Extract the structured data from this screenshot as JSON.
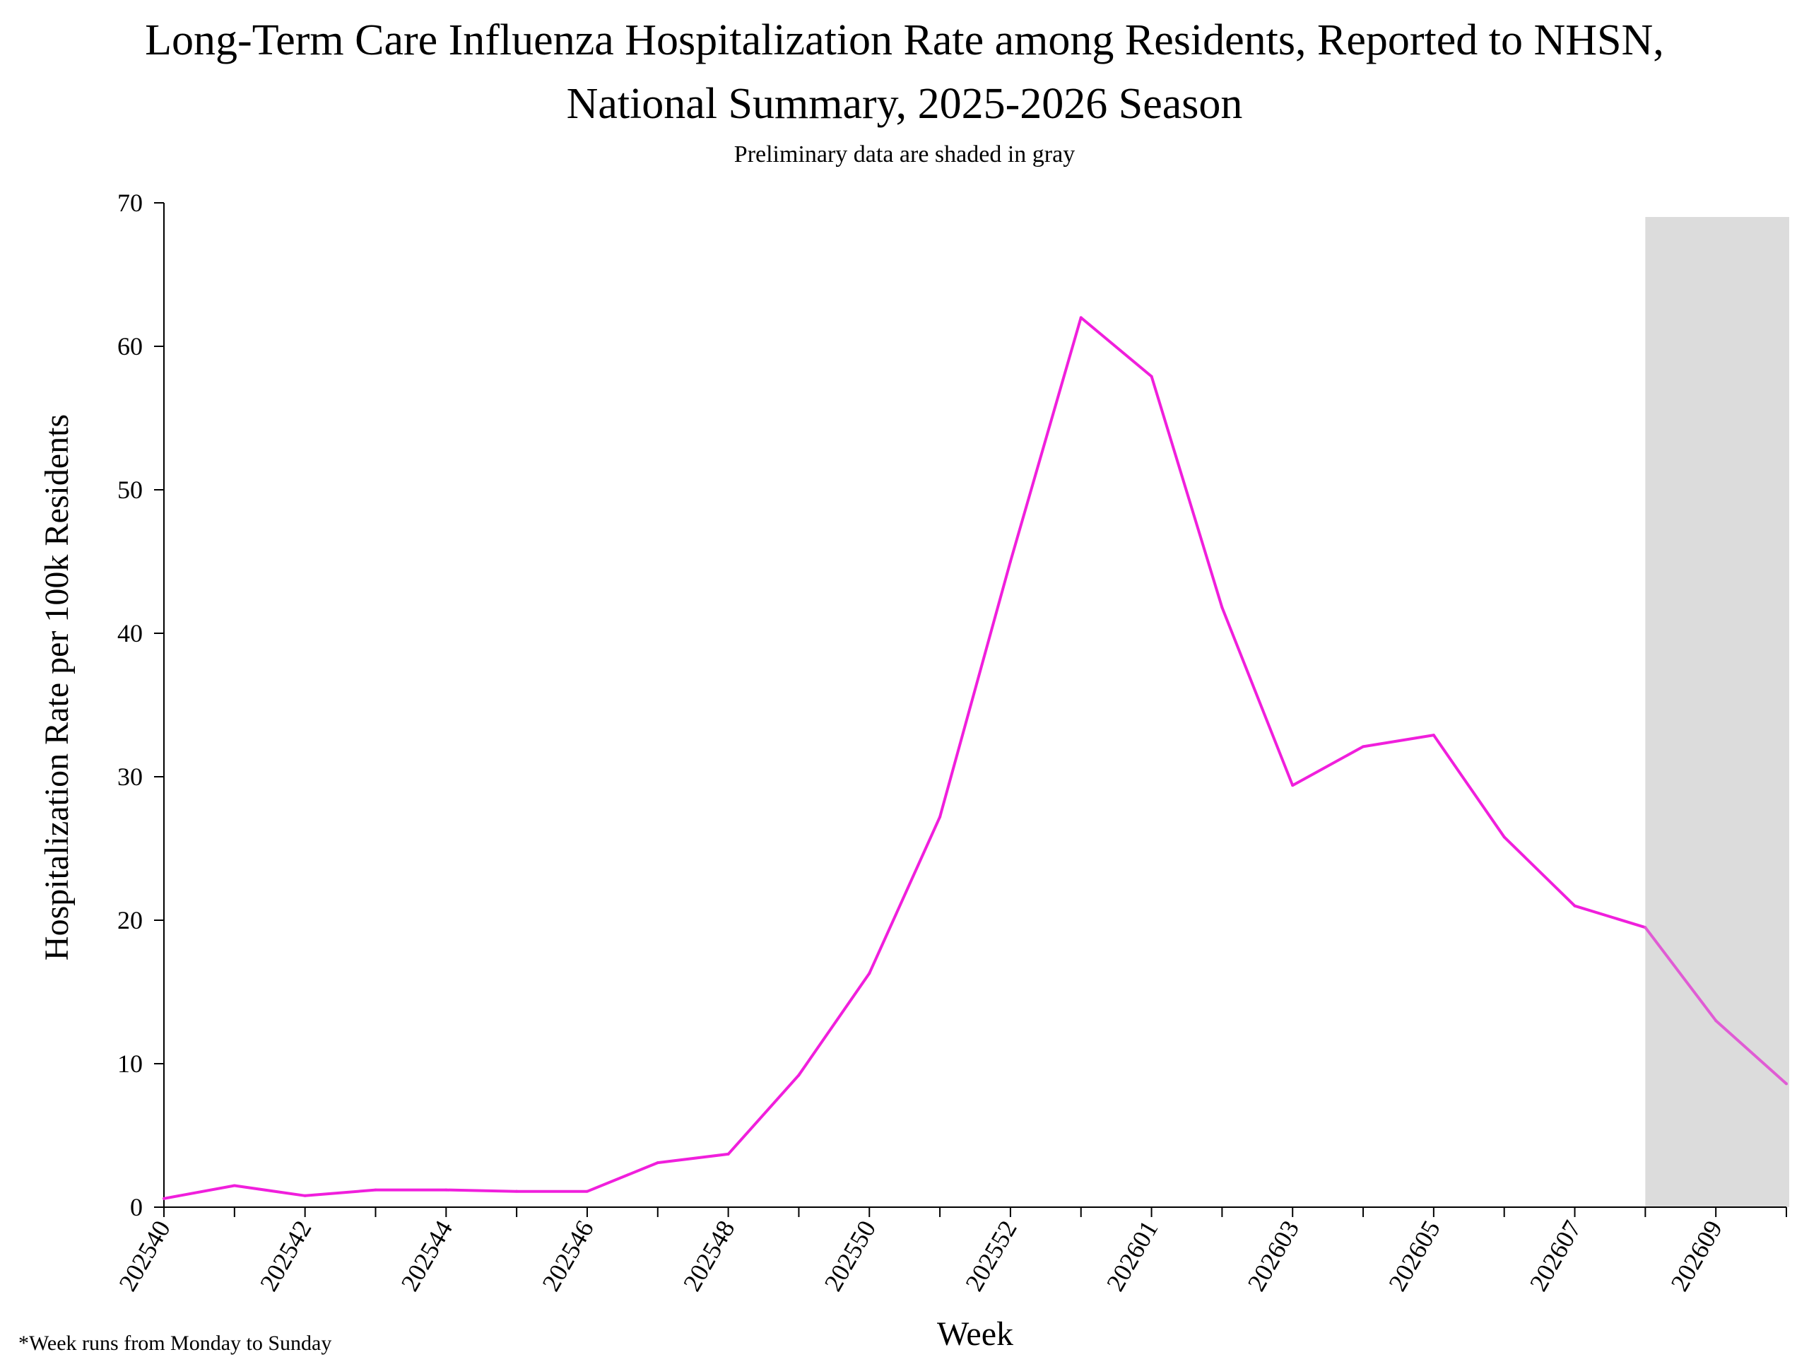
{
  "header": {
    "title_line1": "Long-Term Care Influenza Hospitalization Rate among Residents, Reported to NHSN,",
    "title_line2": "National Summary, 2025-2026 Season",
    "subtitle": "Preliminary data are shaded in gray"
  },
  "footnote": "*Week runs from Monday to Sunday",
  "colors": {
    "line": "#f01fdc",
    "line_preliminary": "#e05cd4",
    "shade": "#dcdcdc",
    "axis": "#000000"
  },
  "chart_data": {
    "type": "line",
    "title": "Long-Term Care Influenza Hospitalization Rate among Residents, Reported to NHSN, National Summary, 2025-2026 Season",
    "subtitle": "Preliminary data are shaded in gray",
    "xlabel": "Week",
    "ylabel": "Hospitalization Rate per 100k Residents",
    "ylim": [
      0,
      70
    ],
    "yticks": [
      0,
      10,
      20,
      30,
      40,
      50,
      60,
      70
    ],
    "x": [
      "202540",
      "202541",
      "202542",
      "202543",
      "202544",
      "202545",
      "202546",
      "202547",
      "202548",
      "202549",
      "202550",
      "202551",
      "202552",
      "202553",
      "202601",
      "202602",
      "202603",
      "202604",
      "202605",
      "202606",
      "202607",
      "202608",
      "202609",
      "202610"
    ],
    "xtick_labels": [
      "202540",
      "202542",
      "202544",
      "202546",
      "202548",
      "202550",
      "202552",
      "202601",
      "202603",
      "202605",
      "202607",
      "202609"
    ],
    "series": [
      {
        "values": [
          0.6,
          1.5,
          0.8,
          1.2,
          1.2,
          1.1,
          1.1,
          3.1,
          3.7,
          9.2,
          16.3,
          27.2,
          45.0,
          62.0,
          57.9,
          41.8,
          29.4,
          32.1,
          32.9,
          25.8,
          21.0,
          19.5,
          13.0,
          8.6
        ]
      }
    ],
    "preliminary_from": "202608",
    "preliminary_to": "202610",
    "grid": false,
    "legend": "none"
  }
}
